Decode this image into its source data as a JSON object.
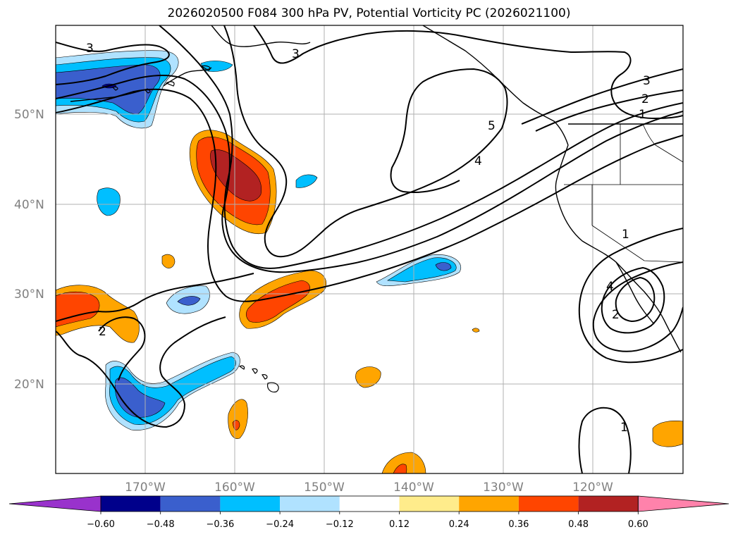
{
  "title": "2026020500 F084 300 hPa PV, Potential Vorticity PC (2026021100)",
  "axes": {
    "lat_labels": [
      "50°N",
      "40°N",
      "30°N",
      "20°N"
    ],
    "lon_labels": [
      "170°W",
      "160°W",
      "150°W",
      "140°W",
      "130°W",
      "120°W"
    ]
  },
  "colorbar": {
    "colors": [
      "#9932CC",
      "#00008B",
      "#3A5FCD",
      "#00BFFF",
      "#B0E2FF",
      "#FFFFFF",
      "#FFEC8B",
      "#FFA500",
      "#FF4500",
      "#B22222",
      "#FF82AB"
    ],
    "tick_labels": [
      "−0.60",
      "−0.48",
      "−0.36",
      "−0.24",
      "−0.12",
      "0.12",
      "0.24",
      "0.36",
      "0.48",
      "0.60"
    ]
  },
  "contour_labels": [
    {
      "text": "3"
    },
    {
      "text": "3"
    },
    {
      "text": "2"
    },
    {
      "text": "1"
    },
    {
      "text": "5"
    },
    {
      "text": "4"
    },
    {
      "text": "2"
    },
    {
      "text": "1"
    },
    {
      "text": "3"
    },
    {
      "text": "4"
    },
    {
      "text": "2"
    },
    {
      "text": "1"
    }
  ]
}
